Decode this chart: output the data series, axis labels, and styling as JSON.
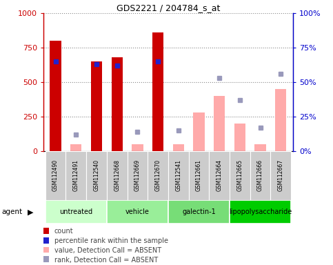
{
  "title": "GDS2221 / 204784_s_at",
  "samples": [
    "GSM112490",
    "GSM112491",
    "GSM112540",
    "GSM112668",
    "GSM112669",
    "GSM112670",
    "GSM112541",
    "GSM112661",
    "GSM112664",
    "GSM112665",
    "GSM112666",
    "GSM112667"
  ],
  "count_values": [
    800,
    0,
    650,
    680,
    0,
    860,
    0,
    0,
    0,
    0,
    0,
    0
  ],
  "count_is_present": [
    true,
    false,
    true,
    true,
    false,
    true,
    false,
    false,
    false,
    false,
    false,
    false
  ],
  "absent_bar_values": [
    0,
    5,
    0,
    0,
    5,
    0,
    5,
    28,
    40,
    20,
    5,
    45
  ],
  "absent_rank_values": [
    0,
    12,
    0,
    0,
    14,
    0,
    15,
    0,
    53,
    37,
    17,
    56
  ],
  "percentile_rank_values": [
    65,
    0,
    63,
    62,
    0,
    65,
    0,
    0,
    0,
    0,
    0,
    0
  ],
  "percentile_rank_present": [
    true,
    false,
    true,
    true,
    false,
    true,
    false,
    false,
    false,
    false,
    false,
    false
  ],
  "ylim_left": [
    0,
    1000
  ],
  "ylim_right": [
    0,
    100
  ],
  "yticks_left": [
    0,
    250,
    500,
    750,
    1000
  ],
  "ytick_labels_left": [
    "0",
    "250",
    "500",
    "750",
    "1000"
  ],
  "yticks_right": [
    0,
    25,
    50,
    75,
    100
  ],
  "ytick_labels_right": [
    "0%",
    "25%",
    "50%",
    "75%",
    "100%"
  ],
  "bar_width": 0.55,
  "count_color": "#cc0000",
  "absent_bar_color": "#ffaaaa",
  "percentile_color": "#2222cc",
  "absent_rank_color": "#9999bb",
  "grid_color": "#888888",
  "bg_color": "#ffffff",
  "xlabel_area_color": "#c8c8c8",
  "group_configs": [
    {
      "label": "untreated",
      "start": 0,
      "end": 2,
      "color": "#ccffcc"
    },
    {
      "label": "vehicle",
      "start": 3,
      "end": 5,
      "color": "#99ee99"
    },
    {
      "label": "galectin-1",
      "start": 6,
      "end": 8,
      "color": "#77dd77"
    },
    {
      "label": "lipopolysaccharide",
      "start": 9,
      "end": 11,
      "color": "#00cc00"
    }
  ],
  "legend_items": [
    {
      "label": "count",
      "color": "#cc0000"
    },
    {
      "label": "percentile rank within the sample",
      "color": "#2222cc"
    },
    {
      "label": "value, Detection Call = ABSENT",
      "color": "#ffaaaa"
    },
    {
      "label": "rank, Detection Call = ABSENT",
      "color": "#9999bb"
    }
  ],
  "agent_label": "agent",
  "left_axis_color": "#cc0000",
  "right_axis_color": "#0000cc"
}
